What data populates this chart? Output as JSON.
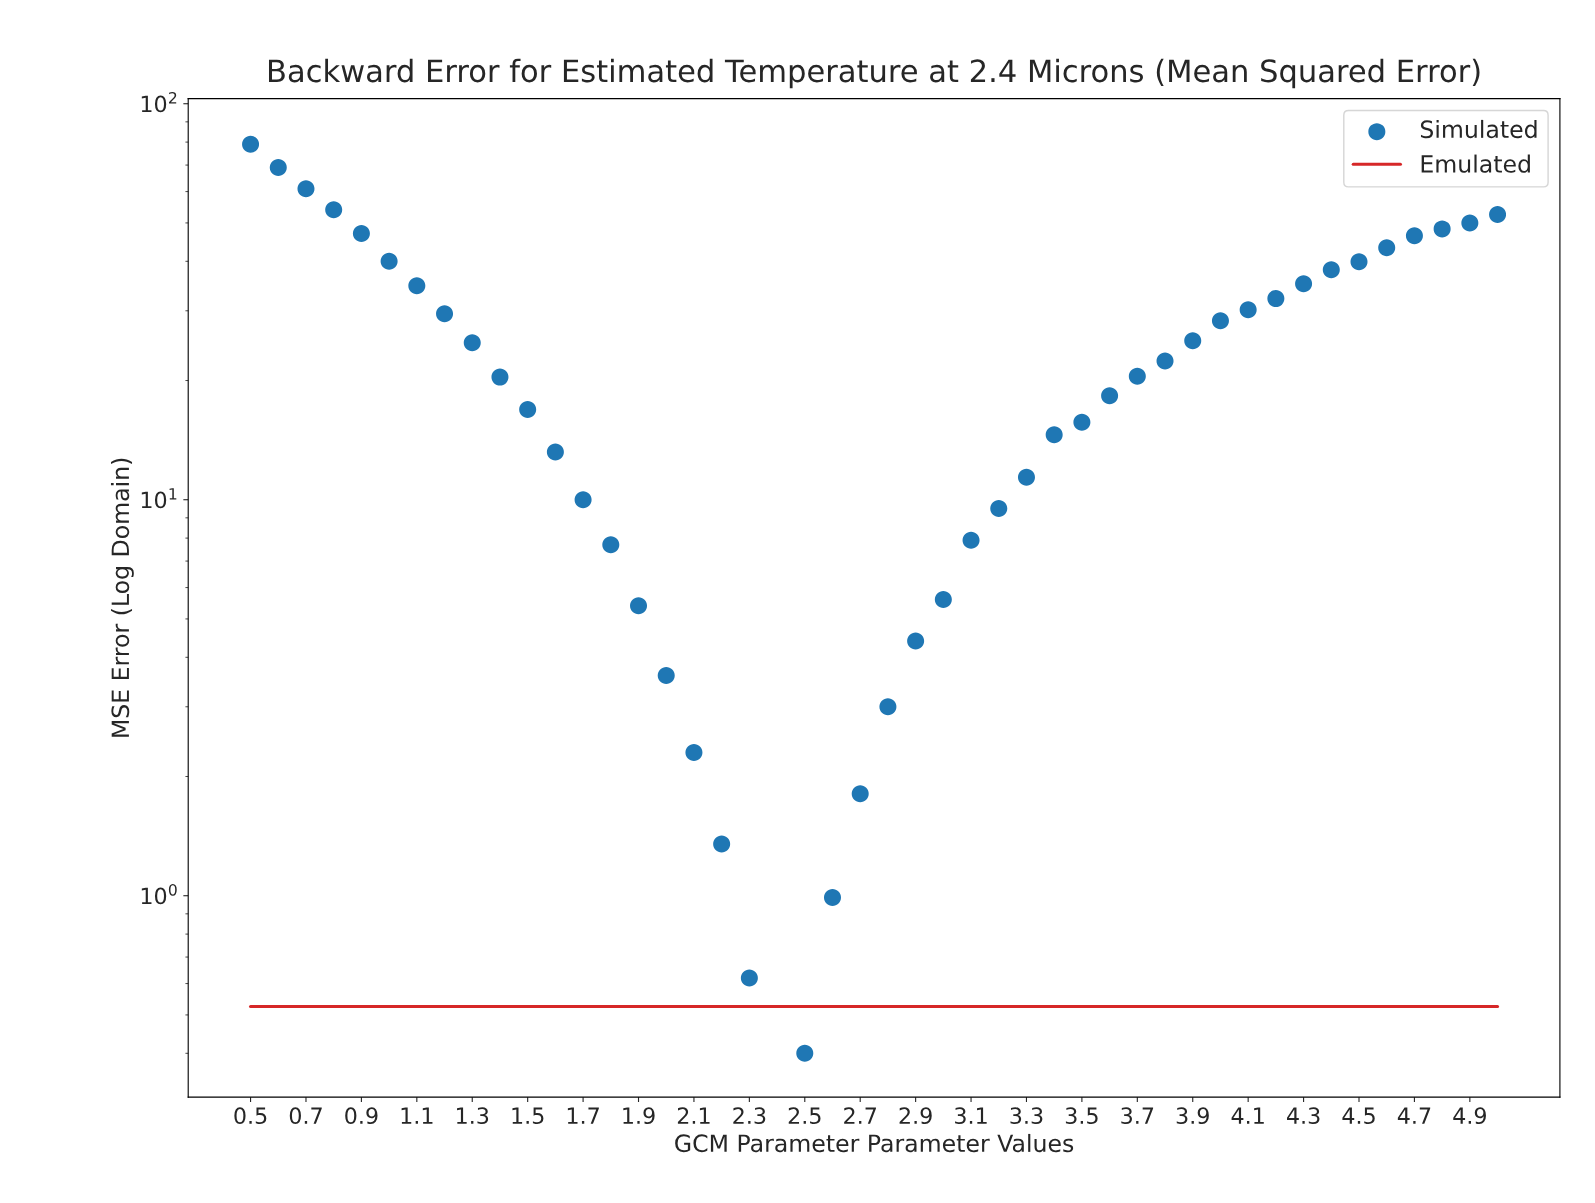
{
  "chart_data": {
    "type": "scatter",
    "title": "Backward Error for Estimated Temperature at 2.4 Microns (Mean Squared Error)",
    "xlabel": "GCM Parameter Parameter Values",
    "ylabel": "MSE Error (Log Domain)",
    "x": [
      0.5,
      0.6,
      0.7,
      0.8,
      0.9,
      1.0,
      1.1,
      1.2,
      1.3,
      1.4,
      1.5,
      1.6,
      1.7,
      1.8,
      1.9,
      2.0,
      2.1,
      2.2,
      2.3,
      2.4,
      2.5,
      2.6,
      2.7,
      2.8,
      2.9,
      3.0,
      3.1,
      3.2,
      3.3,
      3.4,
      3.5,
      3.6,
      3.7,
      3.8,
      3.9,
      4.0,
      4.1,
      4.2,
      4.3,
      4.4,
      4.5,
      4.6,
      4.7,
      4.8,
      4.9,
      5.0
    ],
    "series": [
      {
        "name": "Simulated",
        "color": "#1f77b4",
        "marker": "circle",
        "values": [
          79,
          69,
          61,
          54,
          47,
          40,
          34.7,
          29.5,
          24.9,
          20.4,
          16.9,
          13.2,
          10,
          7.7,
          5.4,
          3.6,
          2.3,
          1.35,
          0.62,
          null,
          0.4,
          0.99,
          1.81,
          3.0,
          4.4,
          5.6,
          7.9,
          9.5,
          11.4,
          14.6,
          15.7,
          18.3,
          20.5,
          22.4,
          25.2,
          28.3,
          30.2,
          32.2,
          35.1,
          38.1,
          39.9,
          43.3,
          46.4,
          48.3,
          50.0,
          52.5
        ]
      },
      {
        "name": "Emulated",
        "type": "line",
        "color": "#d62728",
        "line_style": "solid",
        "x": [
          0.5,
          5.0
        ],
        "values": [
          0.525,
          0.525
        ]
      }
    ],
    "log": "y",
    "xlim": [
      0.275,
      5.225
    ],
    "ylim": [
      0.31,
      103
    ],
    "xticks": [
      0.5,
      0.7,
      0.9,
      1.1,
      1.3,
      1.5,
      1.7,
      1.9,
      2.1,
      2.3,
      2.5,
      2.7,
      2.9,
      3.1,
      3.3,
      3.5,
      3.7,
      3.9,
      4.1,
      4.3,
      4.5,
      4.7,
      4.9
    ],
    "yticks": [
      {
        "value": 1,
        "label": "10$^{0}$"
      },
      {
        "value": 10,
        "label": "10$^{1}$"
      },
      {
        "value": 100,
        "label": "10$^{2}$"
      }
    ],
    "grid": false,
    "legend": "top right"
  }
}
